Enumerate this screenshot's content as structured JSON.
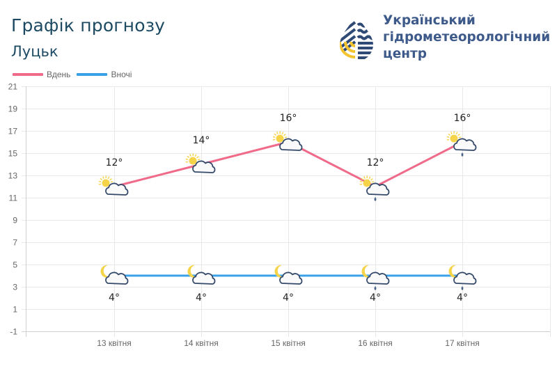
{
  "header": {
    "title": "Графік прогнозу",
    "city": "Луцьк"
  },
  "organization": {
    "line1": "Український",
    "line2": "гідрометеорологічний",
    "line3": "центр"
  },
  "legend": {
    "day_label": "Вдень",
    "night_label": "Вночі"
  },
  "colors": {
    "day": "#f06a8a",
    "night": "#3aa0e8",
    "title": "#1d4a63",
    "logo_blue": "#2f4a75",
    "logo_yellow": "#f4c430"
  },
  "chart_data": {
    "type": "line",
    "title": "Графік прогнозу",
    "subtitle": "Луцьк",
    "xlabel": "",
    "ylabel": "",
    "categories": [
      "13 квітня",
      "14 квітня",
      "15 квітня",
      "16 квітня",
      "17 квітня"
    ],
    "series": [
      {
        "name": "Вдень",
        "color": "#f06a8a",
        "values": [
          12,
          14,
          16,
          12,
          16
        ],
        "labels": [
          "12°",
          "14°",
          "16°",
          "12°",
          "16°"
        ],
        "icons": [
          "sun-cloud",
          "sun-cloud",
          "sun-cloud",
          "sun-cloud-rain",
          "sun-cloud-rain"
        ]
      },
      {
        "name": "Вночі",
        "color": "#3aa0e8",
        "values": [
          4,
          4,
          4,
          4,
          4
        ],
        "labels": [
          "4°",
          "4°",
          "4°",
          "4°",
          "4°"
        ],
        "icons": [
          "moon-cloud",
          "moon-cloud",
          "moon-cloud",
          "moon-cloud-rain",
          "moon-cloud-rain"
        ]
      }
    ],
    "yticks": [
      21,
      19,
      17,
      15,
      13,
      11,
      9,
      7,
      5,
      3,
      1,
      -1
    ],
    "ylim": [
      -1,
      21
    ],
    "grid": true,
    "legend_position": "top-left"
  }
}
